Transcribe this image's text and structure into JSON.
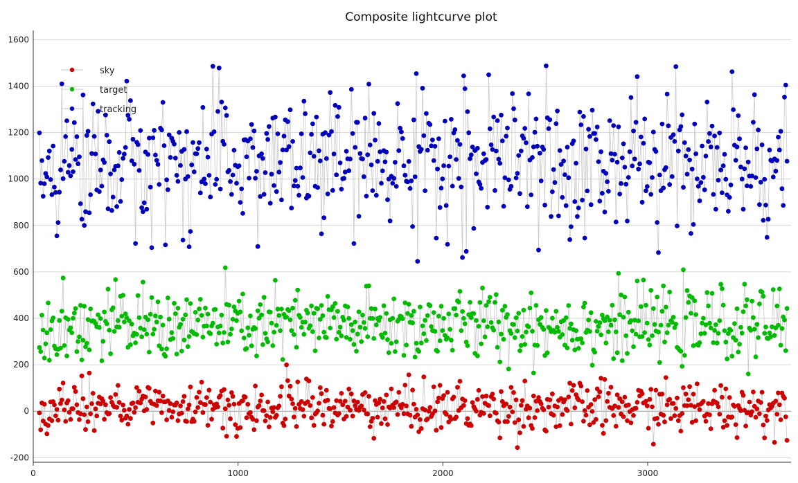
{
  "chart_data": {
    "type": "scatter",
    "title": "Composite lightcurve plot",
    "xlabel": "",
    "ylabel": "",
    "xlim": [
      0,
      3700
    ],
    "ylim": [
      -220,
      1640
    ],
    "x_ticks": [
      0,
      1000,
      2000,
      3000
    ],
    "y_ticks": [
      -200,
      0,
      200,
      400,
      600,
      800,
      1000,
      1200,
      1400,
      1600
    ],
    "grid": true,
    "legend_position": "top-left",
    "x_range": [
      30,
      3680
    ],
    "point_count": 600,
    "series": [
      {
        "name": "sky",
        "color": "#cc0000",
        "mean": 15,
        "spread": 55,
        "min": -170,
        "max": 230
      },
      {
        "name": "target",
        "color": "#00bb00",
        "mean": 370,
        "spread": 75,
        "min": 130,
        "max": 660
      },
      {
        "name": "tracking",
        "color": "#0000bb",
        "mean": 1070,
        "spread": 150,
        "min": 640,
        "max": 1560
      }
    ]
  }
}
